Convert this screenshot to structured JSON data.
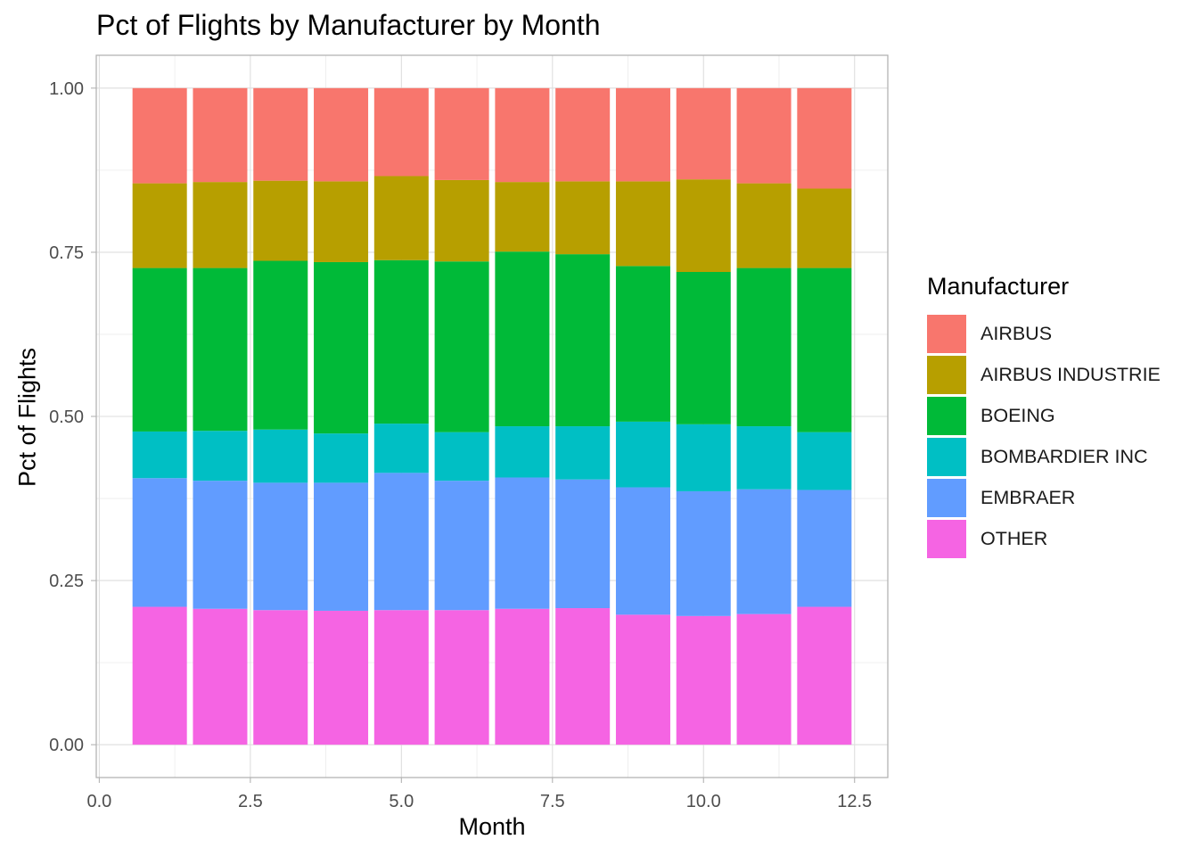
{
  "chart_data": {
    "type": "bar",
    "stacked": true,
    "title": "Pct of Flights by Manufacturer by Month",
    "xlabel": "Month",
    "ylabel": "Pct of Flights",
    "legend_title": "Manufacturer",
    "legend_position": "right",
    "grid": true,
    "xlim": [
      -0.05,
      13.05
    ],
    "ylim": [
      -0.05,
      1.05
    ],
    "x_ticks": [
      0.0,
      2.5,
      5.0,
      7.5,
      10.0,
      12.5
    ],
    "x_tick_labels": [
      "0.0",
      "2.5",
      "5.0",
      "7.5",
      "10.0",
      "12.5"
    ],
    "y_ticks": [
      0.0,
      0.25,
      0.5,
      0.75,
      1.0
    ],
    "y_tick_labels": [
      "0.00",
      "0.25",
      "0.50",
      "0.75",
      "1.00"
    ],
    "x": [
      1,
      2,
      3,
      4,
      5,
      6,
      7,
      8,
      9,
      10,
      11,
      12
    ],
    "series": [
      {
        "name": "AIRBUS",
        "color": "#F8766D",
        "values": [
          0.145,
          0.143,
          0.141,
          0.142,
          0.134,
          0.14,
          0.143,
          0.142,
          0.142,
          0.139,
          0.145,
          0.153
        ]
      },
      {
        "name": "AIRBUS INDUSTRIE",
        "color": "#B79F00",
        "values": [
          0.129,
          0.131,
          0.122,
          0.123,
          0.128,
          0.124,
          0.106,
          0.111,
          0.129,
          0.141,
          0.129,
          0.121
        ]
      },
      {
        "name": "BOEING",
        "color": "#00BA38",
        "values": [
          0.249,
          0.248,
          0.257,
          0.261,
          0.249,
          0.26,
          0.266,
          0.262,
          0.237,
          0.232,
          0.241,
          0.25
        ]
      },
      {
        "name": "BOMBARDIER INC",
        "color": "#00BFC4",
        "values": [
          0.071,
          0.076,
          0.081,
          0.075,
          0.075,
          0.074,
          0.078,
          0.081,
          0.1,
          0.102,
          0.096,
          0.088
        ]
      },
      {
        "name": "EMBRAER",
        "color": "#619CFF",
        "values": [
          0.196,
          0.195,
          0.194,
          0.195,
          0.209,
          0.197,
          0.2,
          0.196,
          0.194,
          0.19,
          0.19,
          0.178
        ]
      },
      {
        "name": "OTHER",
        "color": "#F564E3",
        "values": [
          0.21,
          0.207,
          0.205,
          0.204,
          0.205,
          0.205,
          0.207,
          0.208,
          0.198,
          0.196,
          0.199,
          0.21
        ]
      }
    ]
  }
}
